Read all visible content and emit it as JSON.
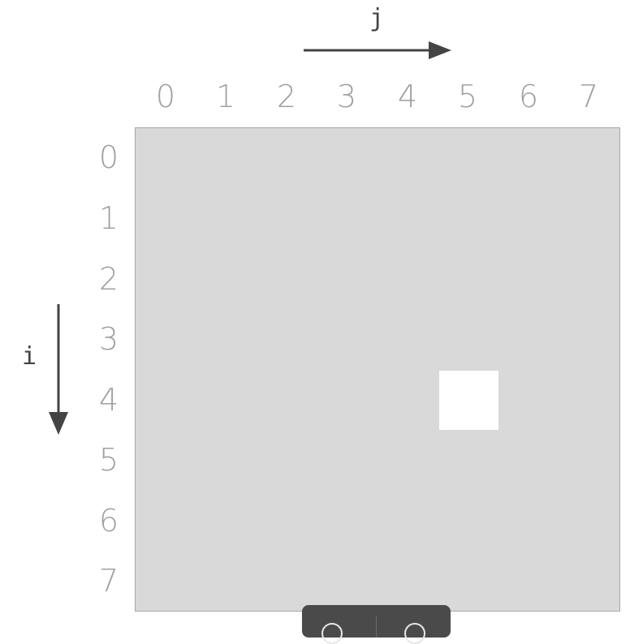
{
  "axes": {
    "column_index_label": "j",
    "row_index_label": "i",
    "column_ticks": [
      "0",
      "1",
      "2",
      "3",
      "4",
      "5",
      "6",
      "7"
    ],
    "row_ticks": [
      "0",
      "1",
      "2",
      "3",
      "4",
      "5",
      "6",
      "7"
    ]
  },
  "grid": {
    "rows": 8,
    "columns": 8,
    "highlighted_cell": {
      "row": 4,
      "column": 5
    }
  },
  "colors": {
    "grid_fill": "#d9d9d9",
    "grid_border": "#a9a9a9",
    "highlight_fill": "#ffffff",
    "tick_text": "#a0a0a0",
    "arrow": "#444444",
    "toolbar": "#4a4a4a"
  },
  "toolbar": {
    "icons": [
      "circle-button-icon",
      "circle-button-icon"
    ]
  }
}
